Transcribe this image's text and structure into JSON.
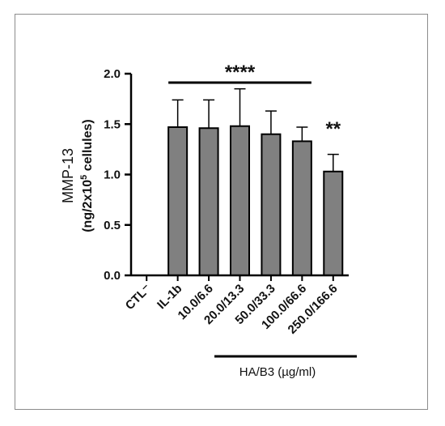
{
  "chart_data": {
    "type": "bar",
    "categories": [
      "CTL⁻",
      "IL-1b",
      "10.0/6.6",
      "20.0/13.3",
      "50.0/33.3",
      "100.0/66.6",
      "250.0/166.6"
    ],
    "values": [
      0,
      1.47,
      1.46,
      1.48,
      1.4,
      1.33,
      1.03
    ],
    "errors": [
      0,
      0.27,
      0.28,
      0.37,
      0.23,
      0.14,
      0.17
    ],
    "ylim": [
      0,
      2.0
    ],
    "yticks": [
      "0.0",
      "0.5",
      "1.0",
      "1.5",
      "2.0"
    ],
    "ylabel_line1": "MMP-13",
    "ylabel_line2_prefix": "(ng/2x10",
    "ylabel_line2_sup": "5",
    "ylabel_line2_suffix": " cellules)",
    "group_label": "HA/B3 (µg/ml)",
    "significance": [
      {
        "label": "****",
        "from": "IL-1b",
        "to": "100.0/66.6"
      },
      {
        "label": "**",
        "category": "250.0/166.6"
      }
    ],
    "bar_color": "#808080",
    "grid": false
  }
}
